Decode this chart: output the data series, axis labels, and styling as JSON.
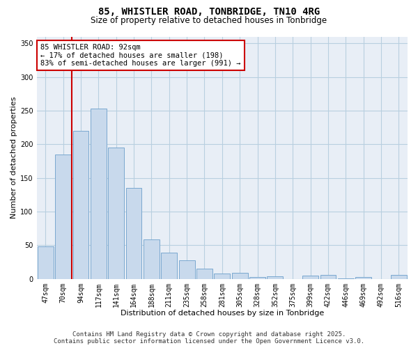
{
  "title_line1": "85, WHISTLER ROAD, TONBRIDGE, TN10 4RG",
  "title_line2": "Size of property relative to detached houses in Tonbridge",
  "xlabel": "Distribution of detached houses by size in Tonbridge",
  "ylabel": "Number of detached properties",
  "categories": [
    "47sqm",
    "70sqm",
    "94sqm",
    "117sqm",
    "141sqm",
    "164sqm",
    "188sqm",
    "211sqm",
    "235sqm",
    "258sqm",
    "281sqm",
    "305sqm",
    "328sqm",
    "352sqm",
    "375sqm",
    "399sqm",
    "422sqm",
    "446sqm",
    "469sqm",
    "492sqm",
    "516sqm"
  ],
  "values": [
    48,
    185,
    220,
    253,
    195,
    135,
    59,
    39,
    28,
    15,
    8,
    9,
    3,
    4,
    0,
    5,
    6,
    1,
    3,
    0,
    6
  ],
  "bar_color": "#c8d9ec",
  "bar_edge_color": "#7aa8d0",
  "vline_x": 1.5,
  "vline_color": "#cc0000",
  "annotation_line1": "85 WHISTLER ROAD: 92sqm",
  "annotation_line2": "← 17% of detached houses are smaller (198)",
  "annotation_line3": "83% of semi-detached houses are larger (991) →",
  "annotation_box_color": "#ffffff",
  "annotation_box_edge_color": "#cc0000",
  "ylim": [
    0,
    360
  ],
  "yticks": [
    0,
    50,
    100,
    150,
    200,
    250,
    300,
    350
  ],
  "grid_color": "#b8cfe0",
  "background_color": "#e8eef6",
  "footer_line1": "Contains HM Land Registry data © Crown copyright and database right 2025.",
  "footer_line2": "Contains public sector information licensed under the Open Government Licence v3.0.",
  "title_fontsize": 10,
  "subtitle_fontsize": 8.5,
  "axis_label_fontsize": 8,
  "tick_fontsize": 7,
  "annotation_fontsize": 7.5,
  "footer_fontsize": 6.5
}
